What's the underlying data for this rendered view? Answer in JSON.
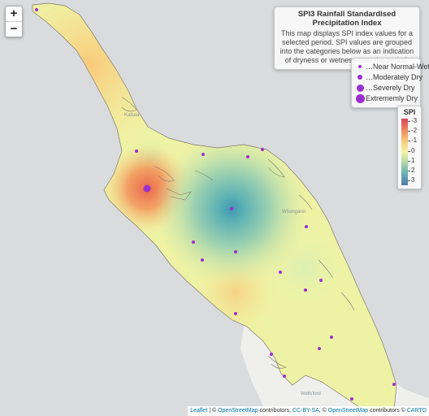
{
  "map": {
    "zoom_in_label": "+",
    "zoom_out_label": "−",
    "colors": {
      "sea": "#d9dbdd",
      "land_outside": "#f3f3f1",
      "stations": "#9b2fd0"
    }
  },
  "info": {
    "title": "SPI3 Rainfall Standardised Precipitation Index",
    "body": "This map displays SPI index values for a selected period. SPI values are grouped into the categories below as an indication of dryness or wetness over the period."
  },
  "legend": {
    "items": [
      {
        "label": "…Near Normal-Wet",
        "size": 4
      },
      {
        "label": "…Moderately Dry",
        "size": 6
      },
      {
        "label": "…Severely Dry",
        "size": 9
      },
      {
        "label": "Extrememly Dry",
        "size": 11
      }
    ]
  },
  "scale": {
    "title": "SPI",
    "labels": [
      "-3",
      "-2",
      "-1",
      "0",
      "1",
      "2",
      "3"
    ],
    "colors": [
      "#d9475a",
      "#f08c5c",
      "#f6cc7a",
      "#f4f3a6",
      "#b8dca4",
      "#6ab3b2",
      "#4e78a8"
    ]
  },
  "places": [
    "Kaitaia",
    "Whangarei",
    "Wellsford"
  ],
  "attribution": {
    "leaflet": "Leaflet",
    "sep1": " | © ",
    "osm1": "OpenStreetMap",
    "contrib1": " contributors, ",
    "ccbysa": "CC-BY-SA",
    "sep2": ", © ",
    "osm2": "OpenStreetMap",
    "contrib2": " contributors © ",
    "carto": "CARTO"
  }
}
